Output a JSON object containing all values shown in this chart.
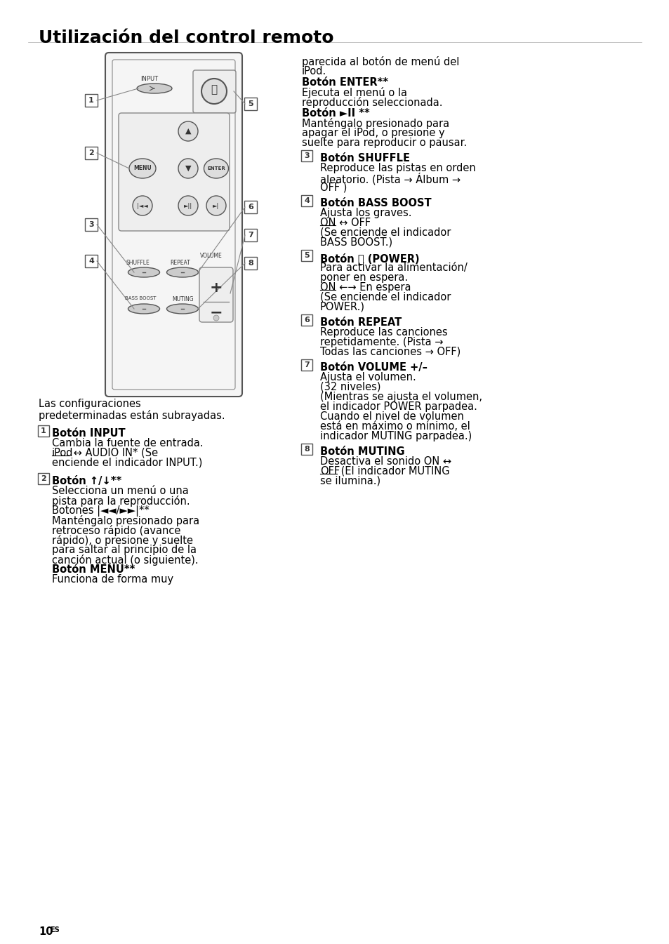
{
  "title": "Utilización del control remoto",
  "page_number": "10ES",
  "background_color": "#ffffff",
  "text_color": "#000000",
  "title_fontsize": 18,
  "body_fontsize": 10.5,
  "right_column": [
    {
      "type": "normal",
      "text": "parecida al botón de menú del"
    },
    {
      "type": "normal",
      "text": "iPod."
    },
    {
      "type": "bold",
      "text": "Botón ENTER**"
    },
    {
      "type": "normal",
      "text": "Ejecuta el menú o la"
    },
    {
      "type": "normal",
      "text": "reproducción seleccionada."
    },
    {
      "type": "bold_inline",
      "bold": "Botón ►II **",
      "normal": ""
    },
    {
      "type": "normal",
      "text": "Manténgalo presionado para"
    },
    {
      "type": "normal",
      "text": "apagar el iPod, o presione y"
    },
    {
      "type": "normal",
      "text": "suelte para reproducir o pausar."
    }
  ],
  "numbered_items": [
    {
      "num": "1",
      "bold_line": "",
      "lines": [
        "Botón INPUT",
        "Cambia la fuente de entrada.",
        "iPod ↔ AUDIO IN* (Se",
        "enciende el indicador INPUT.)"
      ]
    },
    {
      "num": "2",
      "bold_line": "",
      "lines": [
        "Botón ↑/↓**",
        "Selecciona un menú o una",
        "pista para la reproducción.",
        "Botones |◄◄/►►|**",
        "Manténgalo presionado para",
        "retroceso rápido (avance",
        "rápido), o presione y suelte",
        "para saltar al principio de la",
        "canción actual (o siguiente).",
        "Botón MENU**",
        "Funciona de forma muy"
      ]
    },
    {
      "num": "3",
      "bold_line": "",
      "lines": [
        "Botón SHUFFLE",
        "Reproduce las pistas en orden",
        "aleatorio. (Pista → Álbum →",
        "OFF )"
      ]
    },
    {
      "num": "4",
      "bold_line": "",
      "lines": [
        "Botón BASS BOOST",
        "Ajusta los graves.",
        "ON ↔ OFF",
        "(Se enciende el indicador",
        "BASS BOOST.)"
      ]
    },
    {
      "num": "5",
      "bold_line": "",
      "lines": [
        "Botón ⏻ (POWER)",
        "Para activar la alimentación/",
        "poner en espera.",
        "ON ←→ En espera",
        "(Se enciende el indicador",
        "POWER.)"
      ]
    },
    {
      "num": "6",
      "bold_line": "",
      "lines": [
        "Botón REPEAT",
        "Reproduce las canciones",
        "repetidamente. (Pista →",
        "Todas las canciones → OFF)"
      ]
    },
    {
      "num": "7",
      "bold_line": "",
      "lines": [
        "Botón VOLUME +/–",
        "Ajusta el volumen.",
        "(32 niveles)",
        "(Mientras se ajusta el volumen,",
        "el indicador POWER parpadea.",
        "Cuando el nivel de volumen",
        "está en máximo o mínimo, el",
        "indicador MUTING parpadea.)"
      ]
    },
    {
      "num": "8",
      "bold_line": "",
      "lines": [
        "Botón MUTING",
        "Desactiva el sonido ON ↔",
        "OFF (El indicador MUTING",
        "se ilumina.)"
      ]
    }
  ]
}
